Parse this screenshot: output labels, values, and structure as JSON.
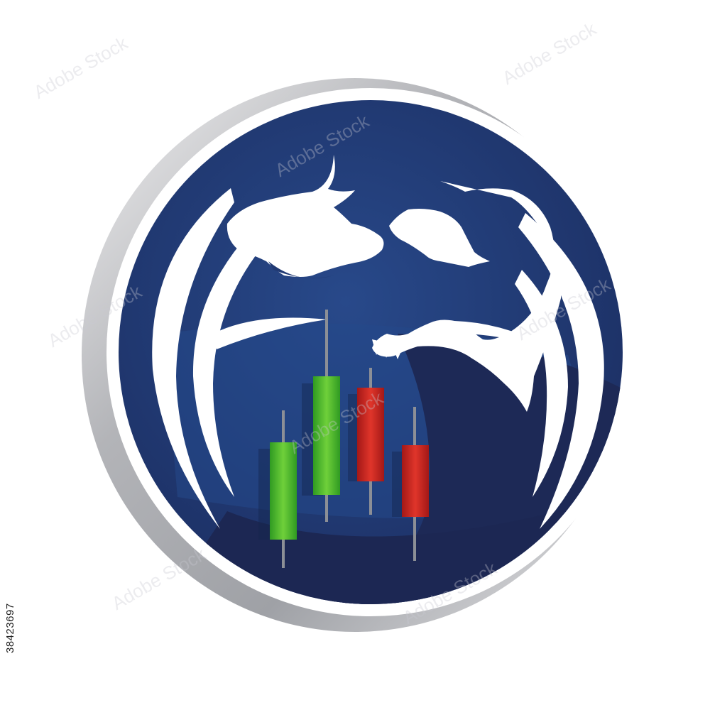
{
  "image": {
    "id_text": "38423697",
    "watermark_text": "Adobe Stock",
    "logo": {
      "description_name": "bull-and-bear-trading-logo",
      "candles": [
        {
          "color": "green",
          "direction": "up"
        },
        {
          "color": "green",
          "direction": "up"
        },
        {
          "color": "red",
          "direction": "down"
        },
        {
          "color": "red",
          "direction": "down"
        }
      ]
    }
  },
  "colors": {
    "navy": "#213a73",
    "navy_dark": "#1c2a55",
    "navy_mid": "#26477f",
    "silver": "#b8b9bd",
    "white": "#ffffff",
    "green": "#3fae2a",
    "green_light": "#7bcf3c",
    "red": "#c8201f",
    "red_dark": "#9a1a18",
    "wick": "#8a8f99"
  }
}
